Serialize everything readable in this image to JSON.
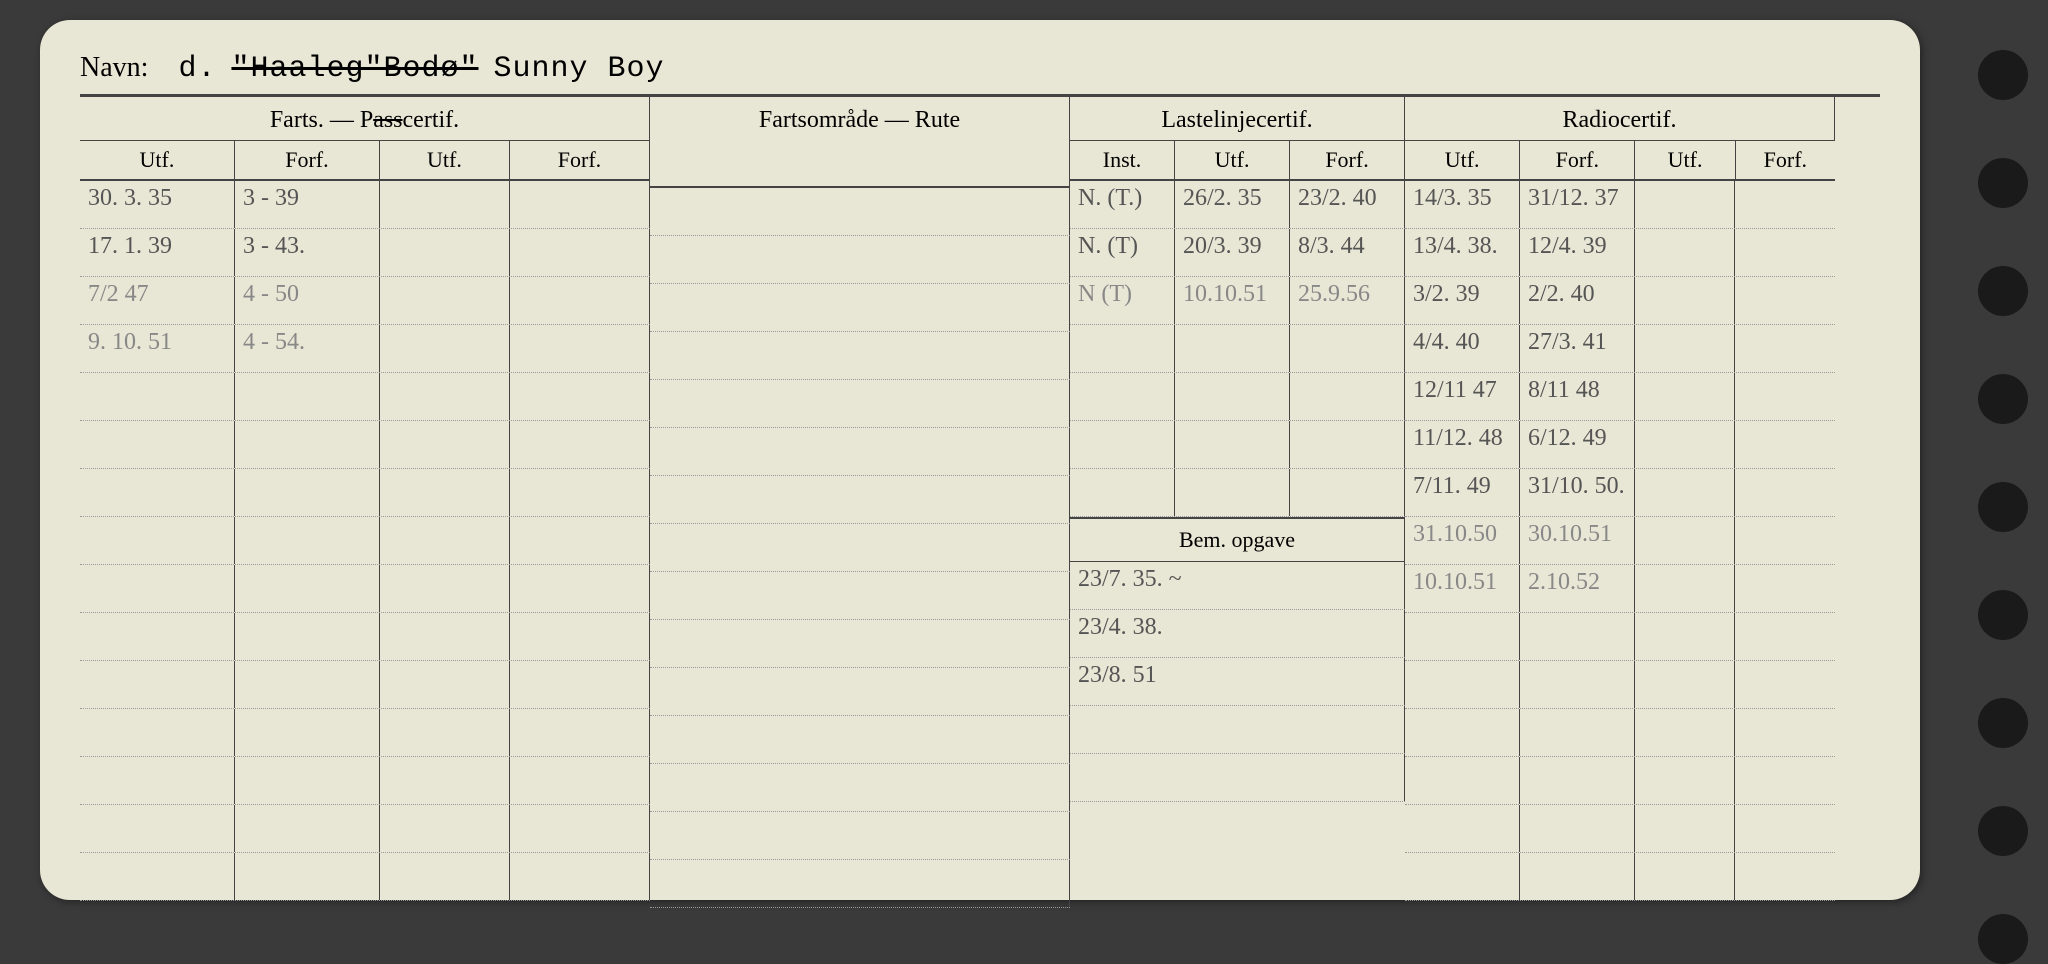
{
  "name": {
    "label": "Navn:",
    "prefix": "d.",
    "struck1": "\"Haaleg\"",
    "struck2": "Bodø\"",
    "current": "Sunny Boy"
  },
  "headers": {
    "farts": "Farts. — Passcertif.",
    "rute": "Fartsområde — Rute",
    "laste": "Lastelinjecertif.",
    "radio": "Radiocertif.",
    "utf": "Utf.",
    "forf": "Forf.",
    "inst": "Inst.",
    "bem": "Bem. opgave"
  },
  "farts_rows": [
    {
      "utf": "30. 3. 35",
      "forf": "3 - 39"
    },
    {
      "utf": "17. 1. 39",
      "forf": "3 - 43."
    },
    {
      "utf": "7/2  47",
      "forf": "4 - 50",
      "faded": true
    },
    {
      "utf": "9. 10. 51",
      "forf": "4 - 54.",
      "faded": true
    },
    {
      "utf": "",
      "forf": ""
    },
    {
      "utf": "",
      "forf": ""
    },
    {
      "utf": "",
      "forf": ""
    },
    {
      "utf": "",
      "forf": ""
    },
    {
      "utf": "",
      "forf": ""
    },
    {
      "utf": "",
      "forf": ""
    },
    {
      "utf": "",
      "forf": ""
    },
    {
      "utf": "",
      "forf": ""
    },
    {
      "utf": "",
      "forf": ""
    },
    {
      "utf": "",
      "forf": ""
    },
    {
      "utf": "",
      "forf": ""
    }
  ],
  "laste_rows": [
    {
      "inst": "N. (T.)",
      "utf": "26/2. 35",
      "forf": "23/2. 40"
    },
    {
      "inst": "N. (T)",
      "utf": "20/3. 39",
      "forf": "8/3. 44"
    },
    {
      "inst": "N (T)",
      "utf": "10.10.51",
      "forf": "25.9.56",
      "faded": true
    },
    {
      "inst": "",
      "utf": "",
      "forf": ""
    },
    {
      "inst": "",
      "utf": "",
      "forf": ""
    },
    {
      "inst": "",
      "utf": "",
      "forf": ""
    },
    {
      "inst": "",
      "utf": "",
      "forf": ""
    }
  ],
  "bem_rows": [
    "23/7. 35. ~",
    "23/4. 38.",
    "23/8. 51",
    "",
    ""
  ],
  "radio_rows": [
    {
      "utf": "14/3. 35",
      "forf": "31/12. 37"
    },
    {
      "utf": "13/4. 38.",
      "forf": "12/4. 39"
    },
    {
      "utf": "3/2. 39",
      "forf": "2/2. 40"
    },
    {
      "utf": "4/4. 40",
      "forf": "27/3. 41"
    },
    {
      "utf": "12/11 47",
      "forf": "8/11 48"
    },
    {
      "utf": "11/12. 48",
      "forf": "6/12. 49"
    },
    {
      "utf": "7/11. 49",
      "forf": "31/10. 50."
    },
    {
      "utf": "31.10.50",
      "forf": "30.10.51",
      "faded": true
    },
    {
      "utf": "10.10.51",
      "forf": "2.10.52",
      "faded": true
    },
    {
      "utf": "",
      "forf": ""
    },
    {
      "utf": "",
      "forf": ""
    },
    {
      "utf": "",
      "forf": ""
    },
    {
      "utf": "",
      "forf": ""
    },
    {
      "utf": "",
      "forf": ""
    },
    {
      "utf": "",
      "forf": ""
    }
  ]
}
